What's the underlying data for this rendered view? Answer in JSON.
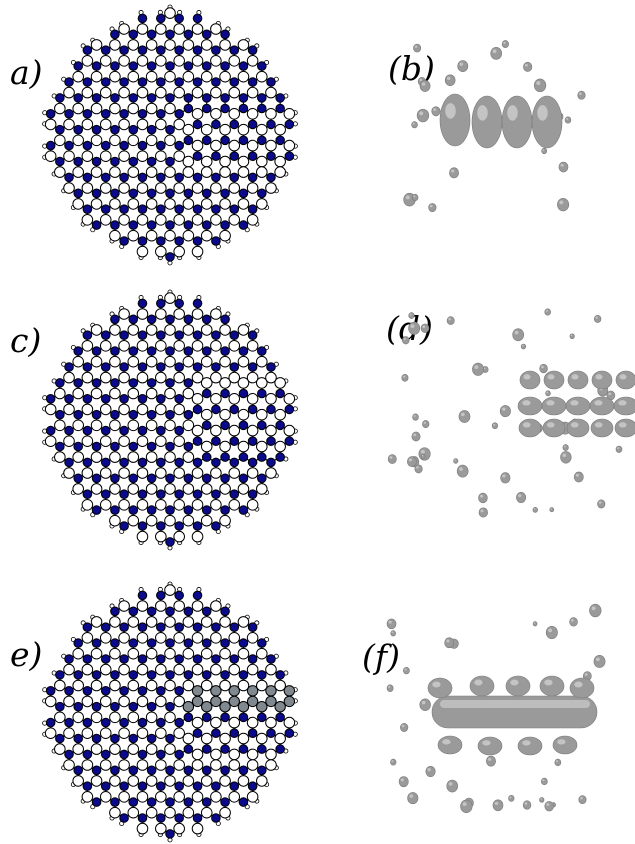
{
  "figure": {
    "panels": [
      {
        "id": "a",
        "label": "a)"
      },
      {
        "id": "b",
        "label": "(b)"
      },
      {
        "id": "c",
        "label": "c)"
      },
      {
        "id": "d",
        "label": "(d)"
      },
      {
        "id": "e",
        "label": "e)"
      },
      {
        "id": "f",
        "label": "(f)"
      }
    ]
  },
  "colors": {
    "nitrogen": "#0a0a8a",
    "boron": "#ffffff",
    "carbon": "#808890",
    "bond": "#000000",
    "density": "#9a9a9a"
  }
}
